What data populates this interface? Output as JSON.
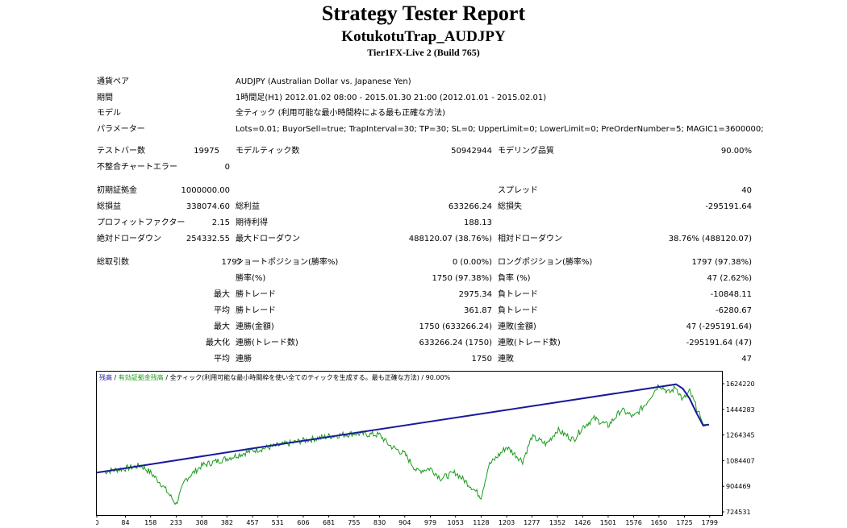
{
  "header": {
    "title": "Strategy Tester Report",
    "ea_name": "KotukotuTrap_AUDJPY",
    "server": "Tier1FX-Live 2 (Build 765)"
  },
  "info": {
    "symbol_label": "通貨ペア",
    "symbol_value": "AUDJPY (Australian Dollar vs. Japanese Yen)",
    "period_label": "期間",
    "period_value": "1時間足(H1) 2012.01.02 08:00 - 2015.01.30 21:00 (2012.01.01 - 2015.02.01)",
    "model_label": "モデル",
    "model_value": "全ティック (利用可能な最小時間枠による最も正確な方法)",
    "params_label": "パラメーター",
    "params_value": "Lots=0.01; BuyorSell=true; TrapInterval=30; TP=30; SL=0; UpperLimit=0; LowerLimit=0; PreOrderNumber=5; MAGIC1=3600000;"
  },
  "stats": {
    "bars_label": "テストバー数",
    "bars_value": "19975",
    "ticks_label": "モデルティック数",
    "ticks_value": "50942944",
    "quality_label": "モデリング品質",
    "quality_value": "90.00%",
    "mismatch_label": "不整合チャートエラー",
    "mismatch_value": "0",
    "deposit_label": "初期証拠金",
    "deposit_value": "1000000.00",
    "spread_label": "スプレッド",
    "spread_value": "40",
    "net_label": "総損益",
    "net_value": "338074.60",
    "gross_profit_label": "総利益",
    "gross_profit_value": "633266.24",
    "gross_loss_label": "総損失",
    "gross_loss_value": "-295191.64",
    "pf_label": "プロフィットファクター",
    "pf_value": "2.15",
    "expected_label": "期待利得",
    "expected_value": "188.13",
    "abs_dd_label": "絶対ドローダウン",
    "abs_dd_value": "254332.55",
    "max_dd_label": "最大ドローダウン",
    "max_dd_value": "488120.07 (38.76%)",
    "rel_dd_label": "相対ドローダウン",
    "rel_dd_value": "38.76% (488120.07)",
    "trades_label": "総取引数",
    "trades_value": "1797",
    "short_label": "ショートポジション(勝率%)",
    "short_value": "0 (0.00%)",
    "long_label": "ロングポジション(勝率%)",
    "long_value": "1797 (97.38%)",
    "win_rate_label": "勝率(%)",
    "win_rate_value": "1750 (97.38%)",
    "loss_rate_label": "負率 (%)",
    "loss_rate_value": "47 (2.62%)",
    "max_label": "最大",
    "largest_win_label": "勝トレード",
    "largest_win_value": "2975.34",
    "largest_loss_label": "負トレード",
    "largest_loss_value": "-10848.11",
    "avg_label": "平均",
    "avg_win_label": "勝トレード",
    "avg_win_value": "361.87",
    "avg_loss_label": "負トレード",
    "avg_loss_value": "-6280.67",
    "max2_label": "最大",
    "cons_wins_money_label": "連勝(金額)",
    "cons_wins_money_value": "1750 (633266.24)",
    "cons_loss_money_label": "連敗(金額)",
    "cons_loss_money_value": "47 (-295191.64)",
    "maxi_label": "最大化",
    "cons_profit_label": "連勝(トレード数)",
    "cons_profit_value": "633266.24 (1750)",
    "cons_loss_label": "連敗(トレード数)",
    "cons_loss_value": "-295191.64 (47)",
    "avg2_label": "平均",
    "avg_cons_wins_label": "連勝",
    "avg_cons_wins_value": "1750",
    "avg_cons_loss_label": "連敗",
    "avg_cons_loss_value": "47"
  },
  "chart_data": {
    "type": "line",
    "legend": {
      "balance": "残高",
      "sep1": " / ",
      "equity": "有効証拠金残高",
      "sep2": " / ",
      "model": "全ティック(利用可能な最小時間枠を使い全てのティックを生成する。最も正確な方法)",
      "sep3": " / ",
      "quality": "90.00%"
    },
    "x_ticks": [
      "0",
      "84",
      "158",
      "233",
      "308",
      "382",
      "457",
      "531",
      "606",
      "681",
      "755",
      "830",
      "904",
      "979",
      "1053",
      "1128",
      "1203",
      "1277",
      "1352",
      "1426",
      "1501",
      "1576",
      "1650",
      "1725",
      "1799"
    ],
    "y_ticks": [
      "1624220",
      "1444283",
      "1264345",
      "1084407",
      "904469",
      "724531"
    ],
    "ylim": [
      724531,
      1624220
    ],
    "xlim": [
      0,
      1835
    ],
    "colors": {
      "balance": "#1a1a9c",
      "equity": "#1a9c1a"
    },
    "series": [
      {
        "name": "残高",
        "x": [
          0,
          457,
          1700,
          1720,
          1740,
          1760,
          1780,
          1797
        ],
        "y": [
          1000000,
          1170000,
          1620000,
          1590000,
          1520000,
          1420000,
          1330000,
          1338075
        ]
      },
      {
        "name": "有効証拠金残高",
        "x": [
          0,
          84,
          130,
          158,
          190,
          233,
          260,
          308,
          382,
          457,
          531,
          606,
          681,
          755,
          830,
          860,
          904,
          940,
          979,
          1010,
          1053,
          1100,
          1128,
          1150,
          1203,
          1250,
          1277,
          1320,
          1352,
          1400,
          1426,
          1460,
          1501,
          1540,
          1576,
          1610,
          1650,
          1680,
          1700,
          1720,
          1740,
          1760,
          1780,
          1797
        ],
        "y": [
          1000000,
          1030000,
          1050000,
          1000000,
          920000,
          780000,
          950000,
          1050000,
          1100000,
          1155000,
          1190000,
          1225000,
          1255000,
          1275000,
          1265000,
          1190000,
          1130000,
          1010000,
          1030000,
          960000,
          1000000,
          900000,
          830000,
          1050000,
          1180000,
          1080000,
          1250000,
          1200000,
          1300000,
          1230000,
          1320000,
          1380000,
          1330000,
          1440000,
          1390000,
          1480000,
          1620000,
          1560000,
          1600000,
          1510000,
          1570000,
          1460000,
          1338000,
          1338075
        ]
      }
    ]
  }
}
